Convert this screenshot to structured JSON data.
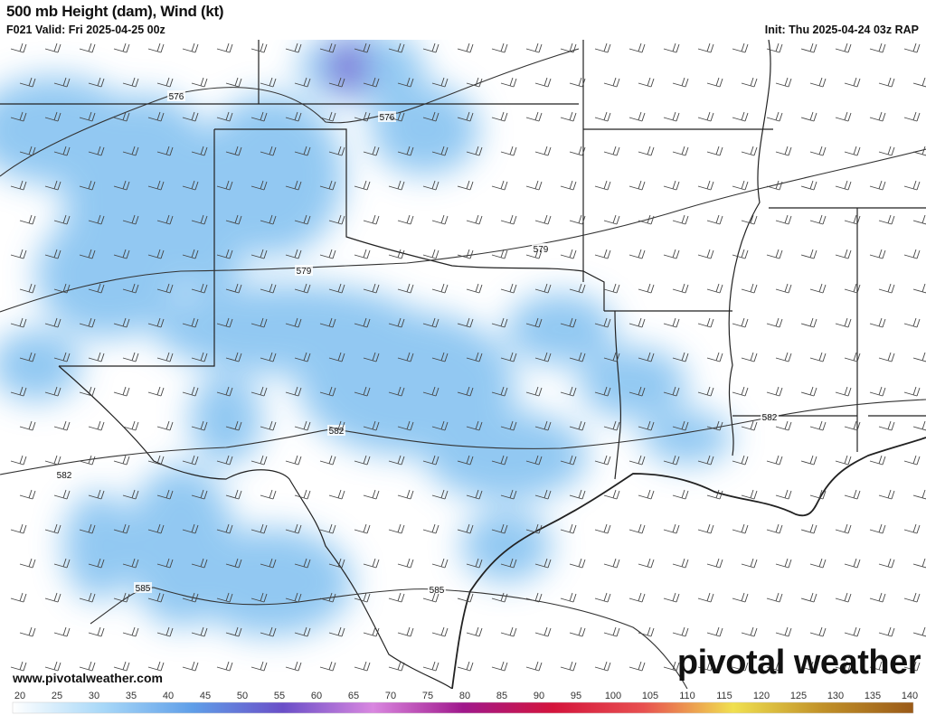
{
  "header": {
    "title": "500 mb Height (dam), Wind (kt)",
    "valid": "F021 Valid: Fri 2025-04-25 00z",
    "init": "Init: Thu 2025-04-24 03z RAP"
  },
  "map": {
    "contour_labels": [
      {
        "value": "576"
      },
      {
        "value": "576"
      },
      {
        "value": "579"
      },
      {
        "value": "579"
      },
      {
        "value": "582"
      },
      {
        "value": "582"
      },
      {
        "value": "582"
      },
      {
        "value": "585"
      },
      {
        "value": "585"
      }
    ],
    "shading_color": "#7fbff0",
    "max_color": "#6a4fd0"
  },
  "footer": {
    "website": "www.pivotalweather.com",
    "logo": "pivotal weather"
  },
  "colorbar": {
    "unit": "kt",
    "ticks": [
      "20",
      "25",
      "30",
      "35",
      "40",
      "45",
      "50",
      "55",
      "60",
      "65",
      "70",
      "75",
      "80",
      "85",
      "90",
      "95",
      "100",
      "105",
      "110",
      "115",
      "120",
      "125",
      "130",
      "135",
      "140"
    ],
    "color_stops": [
      "#ffffff",
      "#a8d8f8",
      "#5f9ee8",
      "#6a4fc8",
      "#d987e0",
      "#a0188c",
      "#d4143c",
      "#e85050",
      "#f0e050",
      "#c09028",
      "#9a5a18"
    ]
  }
}
